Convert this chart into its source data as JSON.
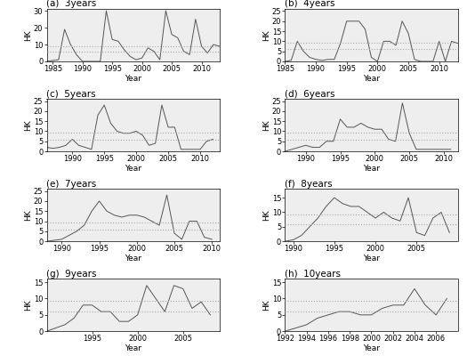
{
  "title_fontsize": 7.5,
  "label_fontsize": 6.5,
  "tick_fontsize": 6,
  "line_color": "#555555",
  "dot_line_color": "#aaaaaa",
  "bg_color": "#eeeeee",
  "hline1": 5.99,
  "hline2": 9.21,
  "panels": [
    {
      "label": "(a)  3years",
      "ylabel": "HK",
      "xlabel": "Year",
      "years": [
        1984,
        1985,
        1986,
        1987,
        1988,
        1989,
        1990,
        1991,
        1992,
        1993,
        1994,
        1995,
        1996,
        1997,
        1998,
        1999,
        2000,
        2001,
        2002,
        2003,
        2004,
        2005,
        2006,
        2007,
        2008,
        2009,
        2010,
        2011,
        2012,
        2013
      ],
      "values": [
        0,
        0.5,
        1,
        19,
        10,
        4,
        0,
        0,
        0,
        0,
        30,
        13,
        12,
        7,
        3,
        1,
        2,
        8,
        6,
        1,
        30,
        16,
        14,
        6,
        4,
        25,
        9,
        5,
        10,
        9
      ],
      "ylim": [
        0,
        31
      ],
      "yticks": [
        0,
        10,
        20,
        30
      ],
      "xticks": [
        1985,
        1990,
        1995,
        2000,
        2005,
        2010
      ],
      "xlim": [
        1984,
        2013
      ]
    },
    {
      "label": "(b)  4years",
      "ylabel": "HK",
      "xlabel": "Year",
      "years": [
        1985,
        1986,
        1987,
        1988,
        1989,
        1990,
        1991,
        1992,
        1993,
        1994,
        1995,
        1996,
        1997,
        1998,
        1999,
        2000,
        2001,
        2002,
        2003,
        2004,
        2005,
        2006,
        2007,
        2008,
        2009,
        2010,
        2011,
        2012,
        2013
      ],
      "values": [
        0,
        0.5,
        10,
        5,
        2,
        1,
        0.5,
        1,
        1,
        9,
        20,
        20,
        20,
        16,
        2,
        0,
        10,
        10,
        8,
        20,
        14,
        1,
        0,
        0,
        0,
        10,
        0,
        10,
        9
      ],
      "ylim": [
        0,
        26
      ],
      "yticks": [
        0,
        5,
        10,
        15,
        20,
        25
      ],
      "xticks": [
        1985,
        1990,
        1995,
        2000,
        2005,
        2010
      ],
      "xlim": [
        1985,
        2013
      ]
    },
    {
      "label": "(c)  5years",
      "ylabel": "HK",
      "xlabel": "Year",
      "years": [
        1986,
        1987,
        1988,
        1989,
        1990,
        1991,
        1992,
        1993,
        1994,
        1995,
        1996,
        1997,
        1998,
        1999,
        2000,
        2001,
        2002,
        2003,
        2004,
        2005,
        2006,
        2007,
        2008,
        2009,
        2010,
        2011,
        2012
      ],
      "values": [
        2,
        1.5,
        2,
        3,
        6,
        3,
        2,
        1,
        18,
        23,
        14,
        10,
        9,
        9,
        10,
        8,
        3,
        4,
        23,
        12,
        12,
        1,
        1,
        1,
        1,
        5,
        6
      ],
      "ylim": [
        0,
        26
      ],
      "yticks": [
        0,
        5,
        10,
        15,
        20,
        25
      ],
      "xticks": [
        1990,
        1995,
        2000,
        2005,
        2010
      ],
      "xlim": [
        1986,
        2013
      ]
    },
    {
      "label": "(d)  6years",
      "ylabel": "HK",
      "xlabel": "Year",
      "years": [
        1987,
        1988,
        1989,
        1990,
        1991,
        1992,
        1993,
        1994,
        1995,
        1996,
        1997,
        1998,
        1999,
        2000,
        2001,
        2002,
        2003,
        2004,
        2005,
        2006,
        2007,
        2008,
        2009,
        2010,
        2011
      ],
      "values": [
        0,
        1,
        2,
        3,
        2,
        2,
        5,
        5,
        16,
        12,
        12,
        14,
        12,
        11,
        11,
        6,
        5,
        24,
        9,
        1,
        1,
        1,
        1,
        1,
        1
      ],
      "ylim": [
        0,
        26
      ],
      "yticks": [
        0,
        5,
        10,
        15,
        20,
        25
      ],
      "xticks": [
        1990,
        1995,
        2000,
        2005,
        2010
      ],
      "xlim": [
        1987,
        2012
      ]
    },
    {
      "label": "(e)  7years",
      "ylabel": "HK",
      "xlabel": "Year",
      "years": [
        1988,
        1989,
        1990,
        1991,
        1992,
        1993,
        1994,
        1995,
        1996,
        1997,
        1998,
        1999,
        2000,
        2001,
        2002,
        2003,
        2004,
        2005,
        2006,
        2007,
        2008,
        2009,
        2010
      ],
      "values": [
        0,
        0.5,
        1,
        3,
        5,
        8,
        15,
        20,
        15,
        13,
        12,
        13,
        13,
        12,
        10,
        8,
        23,
        4,
        1,
        10,
        10,
        2,
        1
      ],
      "ylim": [
        0,
        26
      ],
      "yticks": [
        0,
        5,
        10,
        15,
        20,
        25
      ],
      "xticks": [
        1990,
        1995,
        2000,
        2005,
        2010
      ],
      "xlim": [
        1988,
        2011
      ]
    },
    {
      "label": "(f)  8years",
      "ylabel": "HK",
      "xlabel": "Year",
      "years": [
        1989,
        1990,
        1991,
        1992,
        1993,
        1994,
        1995,
        1996,
        1997,
        1998,
        1999,
        2000,
        2001,
        2002,
        2003,
        2004,
        2005,
        2006,
        2007,
        2008,
        2009
      ],
      "values": [
        0,
        0.5,
        2,
        5,
        8,
        12,
        15,
        13,
        12,
        12,
        10,
        8,
        10,
        8,
        7,
        15,
        3,
        2,
        8,
        10,
        3
      ],
      "ylim": [
        0,
        18
      ],
      "yticks": [
        0,
        5,
        10,
        15
      ],
      "xticks": [
        1990,
        1995,
        2000,
        2005
      ],
      "xlim": [
        1989,
        2010
      ]
    },
    {
      "label": "(g)  9years",
      "ylabel": "HK",
      "xlabel": "Year",
      "years": [
        1990,
        1991,
        1992,
        1993,
        1994,
        1995,
        1996,
        1997,
        1998,
        1999,
        2000,
        2001,
        2002,
        2003,
        2004,
        2005,
        2006,
        2007,
        2008
      ],
      "values": [
        0,
        1,
        2,
        4,
        8,
        8,
        6,
        6,
        3,
        3,
        5,
        14,
        10,
        6,
        14,
        13,
        7,
        9,
        5
      ],
      "ylim": [
        0,
        16
      ],
      "yticks": [
        0,
        5,
        10,
        15
      ],
      "xticks": [
        1995,
        2000,
        2005
      ],
      "xlim": [
        1990,
        2009
      ]
    },
    {
      "label": "(h)  10years",
      "ylabel": "HK",
      "xlabel": "Year",
      "years": [
        1992,
        1993,
        1994,
        1995,
        1996,
        1997,
        1998,
        1999,
        2000,
        2001,
        2002,
        2003,
        2004,
        2005,
        2006,
        2007
      ],
      "values": [
        0,
        1,
        2,
        4,
        5,
        6,
        6,
        5,
        5,
        7,
        8,
        8,
        13,
        8,
        5,
        10
      ],
      "ylim": [
        0,
        16
      ],
      "yticks": [
        0,
        5,
        10,
        15
      ],
      "xticks": [
        1992,
        1994,
        1996,
        1998,
        2000,
        2002,
        2004,
        2006
      ],
      "xlim": [
        1992,
        2008
      ]
    }
  ]
}
